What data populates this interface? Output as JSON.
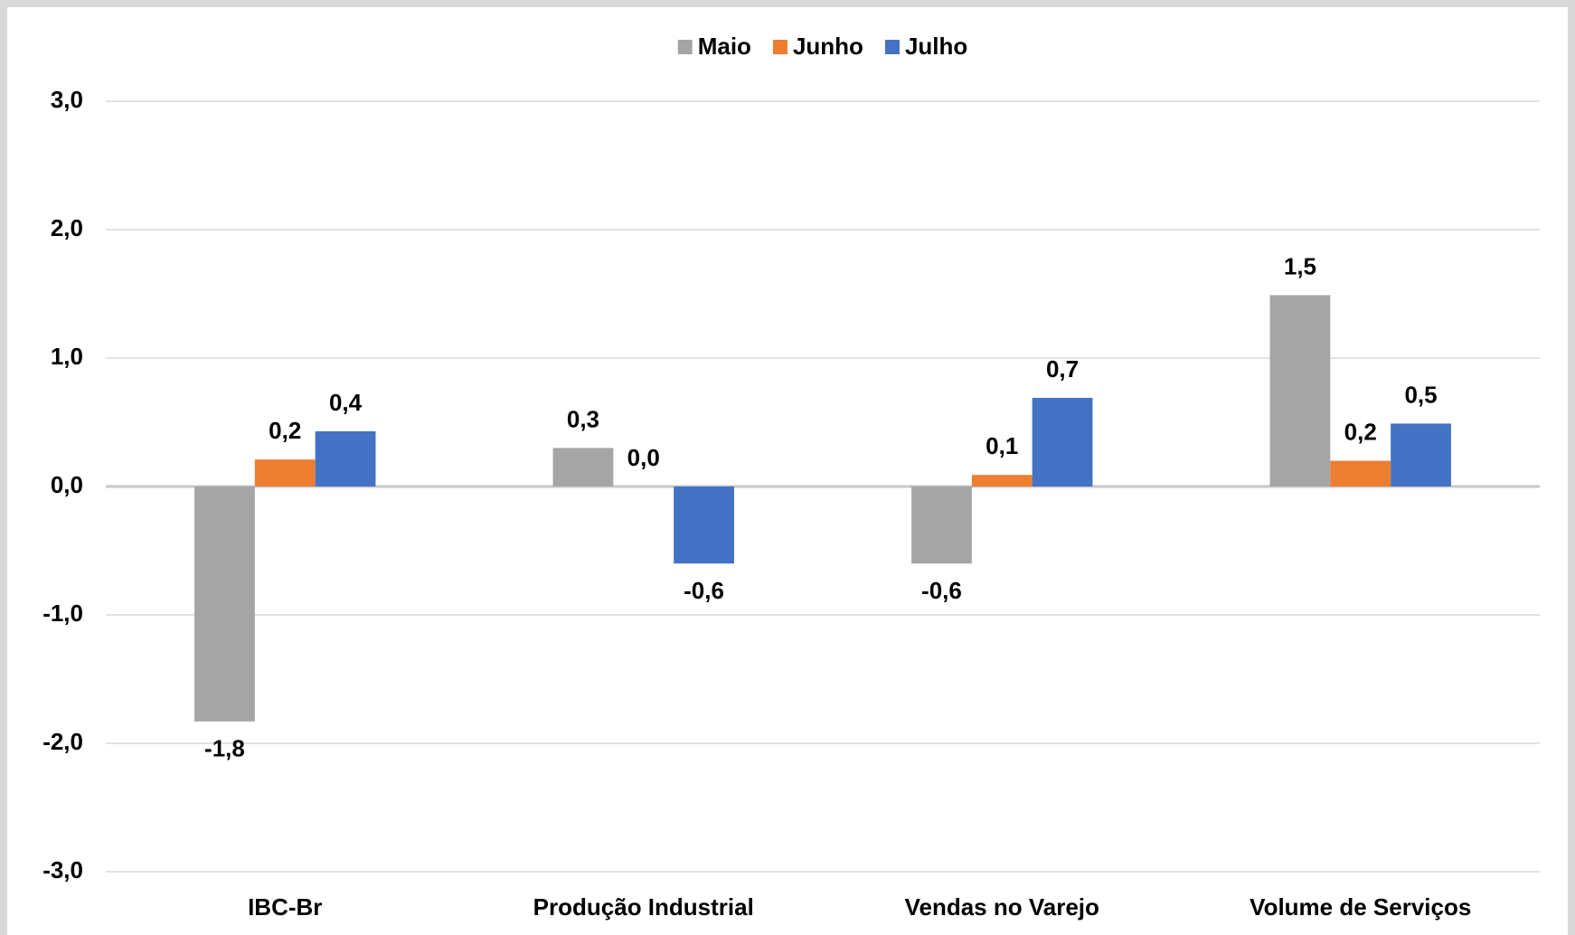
{
  "chart_data": {
    "type": "bar",
    "categories": [
      "IBC-Br",
      "Produção Industrial",
      "Vendas no Varejo",
      "Volume de Serviços"
    ],
    "series": [
      {
        "name": "Maio",
        "color": "#a5a5a5",
        "values": [
          -1.83,
          0.3,
          -0.6,
          1.49
        ],
        "value_labels": [
          "-1,8",
          "0,3",
          "-0,6",
          "1,5"
        ]
      },
      {
        "name": "Junho",
        "color": "#ed7d31",
        "values": [
          0.21,
          0.0,
          0.09,
          0.2
        ],
        "value_labels": [
          "0,2",
          "0,0",
          "0,1",
          "0,2"
        ]
      },
      {
        "name": "Julho",
        "color": "#4472c4",
        "values": [
          0.43,
          -0.6,
          0.69,
          0.49
        ],
        "value_labels": [
          "0,4",
          "-0,6",
          "0,7",
          "0,5"
        ]
      }
    ],
    "ylim": [
      -3,
      3
    ],
    "yticks": [
      {
        "value": -3,
        "label": "-3,0"
      },
      {
        "value": -2,
        "label": "-2,0"
      },
      {
        "value": -1,
        "label": "-1,0"
      },
      {
        "value": 0,
        "label": "0,0"
      },
      {
        "value": 1,
        "label": "1,0"
      },
      {
        "value": 2,
        "label": "2,0"
      },
      {
        "value": 3,
        "label": "3,0"
      }
    ],
    "grid": true,
    "legend": "top"
  }
}
